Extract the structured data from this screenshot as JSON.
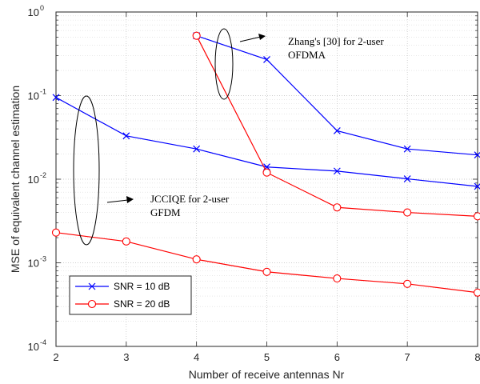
{
  "chart_data": {
    "type": "line",
    "xlabel": "Number of receive antennas Nr",
    "ylabel": "MSE of equivalent channel estimation",
    "xlim": [
      2,
      8
    ],
    "ylim_log10": [
      -4,
      0
    ],
    "yscale": "log",
    "grid": true,
    "minor_grid": true,
    "legend_position": "bottom-left",
    "x_ticks": [
      "2",
      "3",
      "4",
      "5",
      "6",
      "7",
      "8"
    ],
    "y_ticks": [
      {
        "base": "10",
        "exp": "-4"
      },
      {
        "base": "10",
        "exp": "-3"
      },
      {
        "base": "10",
        "exp": "-2"
      },
      {
        "base": "10",
        "exp": "-1"
      },
      {
        "base": "10",
        "exp": "0"
      }
    ],
    "series": [
      {
        "name": "SNR = 10 dB",
        "color": "#0000ff",
        "marker": "x",
        "legend": true,
        "x": [
          2,
          3,
          4,
          5,
          6,
          7,
          8
        ],
        "y": [
          0.095,
          0.033,
          0.023,
          0.014,
          0.0125,
          0.0101,
          0.0082
        ]
      },
      {
        "name": "SNR = 20 dB",
        "color": "#ff0000",
        "marker": "o",
        "legend": true,
        "x": [
          2,
          3,
          4,
          5,
          6,
          7,
          8
        ],
        "y": [
          0.0023,
          0.0018,
          0.0011,
          0.00078,
          0.00065,
          0.00056,
          0.00044
        ]
      },
      {
        "name": "",
        "color": "#0000ff",
        "marker": "x",
        "legend": false,
        "x": [
          4,
          5,
          6,
          7,
          8
        ],
        "y": [
          0.52,
          0.27,
          0.038,
          0.023,
          0.0195
        ]
      },
      {
        "name": "",
        "color": "#ff0000",
        "marker": "o",
        "legend": false,
        "x": [
          4,
          5,
          6,
          7,
          8
        ],
        "y": [
          0.52,
          0.012,
          0.0046,
          0.004,
          0.0036
        ]
      }
    ],
    "annotations": [
      {
        "lines": [
          "Zhang's [30] for 2-user",
          "OFDMA"
        ]
      },
      {
        "lines": [
          "JCCIQE for 2-user",
          "GFDM"
        ]
      }
    ]
  }
}
